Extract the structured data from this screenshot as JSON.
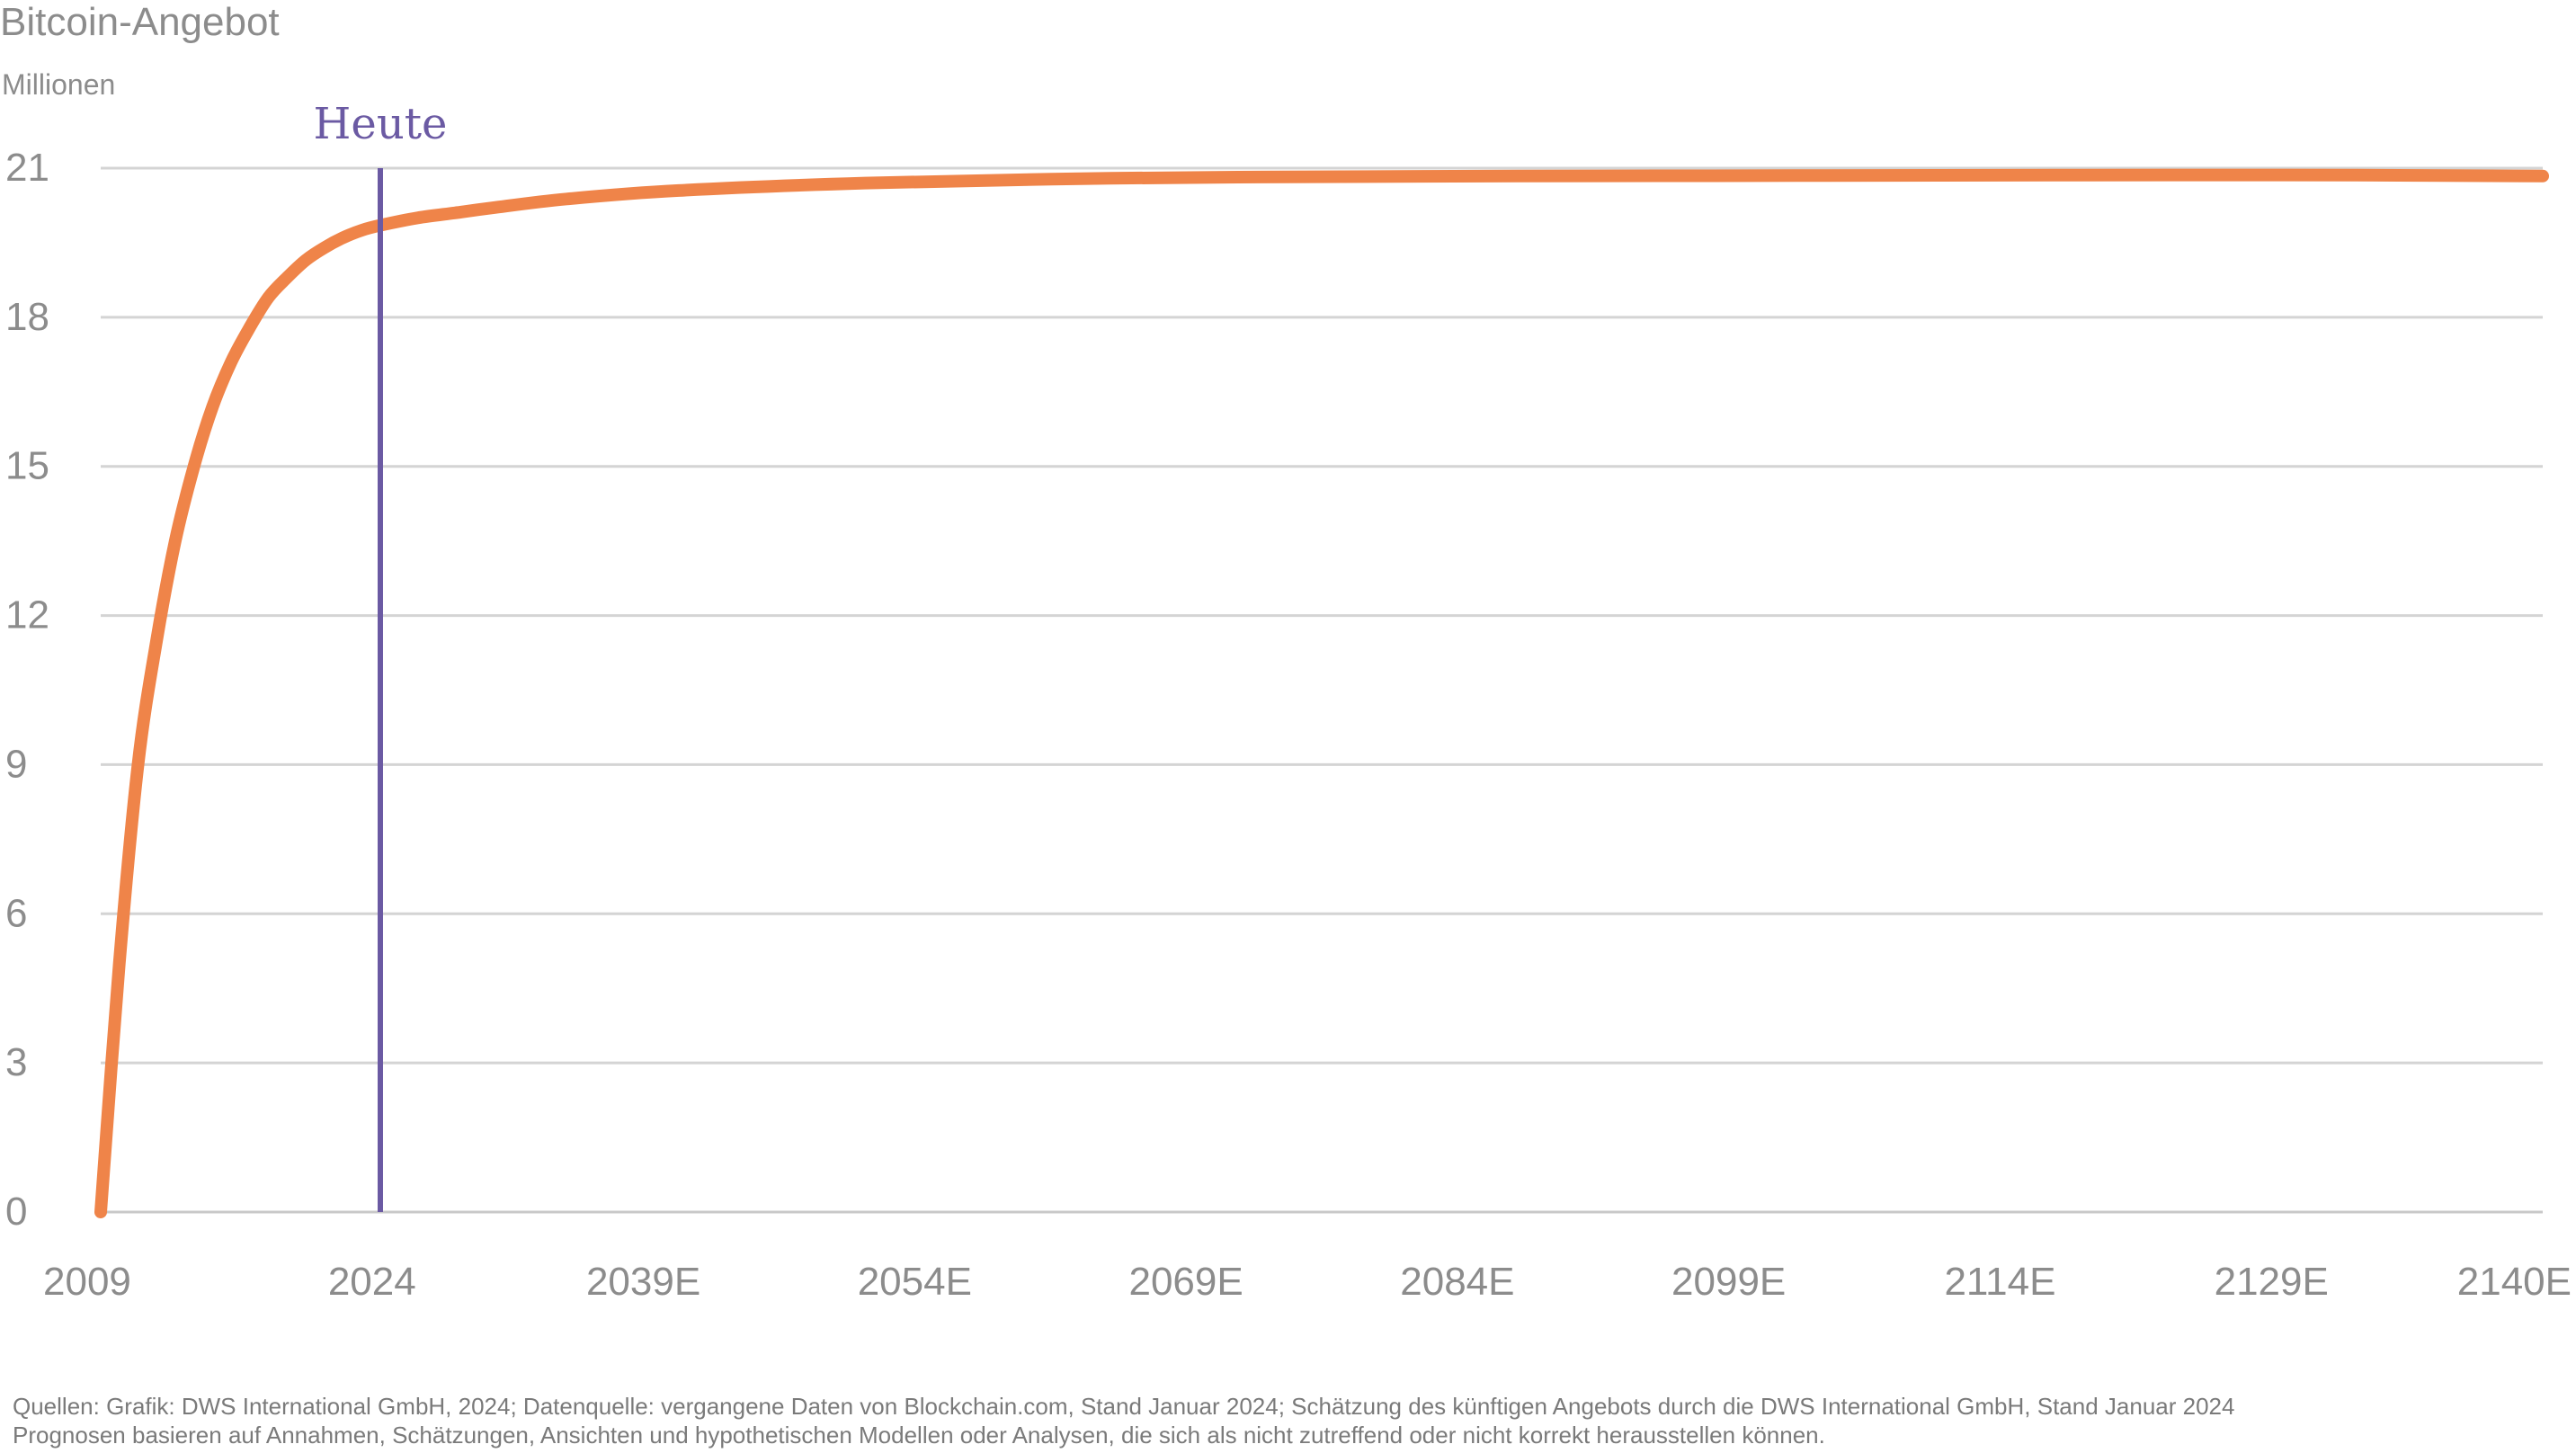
{
  "chart_data": {
    "type": "line",
    "title": "Bitcoin-Angebot",
    "ylabel": "Millionen",
    "xlabel": "",
    "x_ticks": [
      "2009",
      "2024",
      "2039E",
      "2054E",
      "2069E",
      "2084E",
      "2099E",
      "2114E",
      "2129E",
      "2140E"
    ],
    "xlim": [
      2009,
      2140
    ],
    "ylim": [
      0,
      21
    ],
    "y_ticks": [
      0,
      3,
      6,
      9,
      12,
      15,
      18,
      21
    ],
    "grid": "horizontal",
    "series": [
      {
        "name": "",
        "color": "#ef8449",
        "x": [
          2009,
          2010,
          2011,
          2012,
          2013,
          2014,
          2015,
          2016,
          2017,
          2018,
          2019,
          2020,
          2021,
          2022,
          2023,
          2024,
          2026,
          2028,
          2030,
          2034,
          2040,
          2050,
          2060,
          2070,
          2085,
          2100,
          2115,
          2130,
          2140
        ],
        "y": [
          0,
          5,
          9,
          11.5,
          13.5,
          15,
          16.2,
          17.1,
          17.8,
          18.4,
          18.8,
          19.15,
          19.4,
          19.6,
          19.75,
          19.85,
          20.0,
          20.1,
          20.2,
          20.38,
          20.55,
          20.7,
          20.78,
          20.82,
          20.84,
          20.85,
          20.86,
          20.86,
          20.84
        ]
      }
    ],
    "annotations": [
      {
        "label": "Heute",
        "x": 2024,
        "color": "#6b5aa3"
      }
    ]
  },
  "footer": {
    "line1": "Quellen: Grafik: DWS International GmbH, 2024; Datenquelle: vergangene Daten von Blockchain.com, Stand Januar 2024; Schätzung des künftigen Angebots durch die DWS International GmbH, Stand Januar 2024",
    "line2": "Prognosen basieren auf Annahmen, Schätzungen, Ansichten und hypothetischen Modellen oder Analysen, die sich als nicht zutreffend oder nicht korrekt herausstellen können."
  },
  "colors": {
    "axis_text": "#8c8c8c",
    "grid": "#d4d4d4",
    "line": "#ef8449",
    "today": "#6b5aa3"
  }
}
